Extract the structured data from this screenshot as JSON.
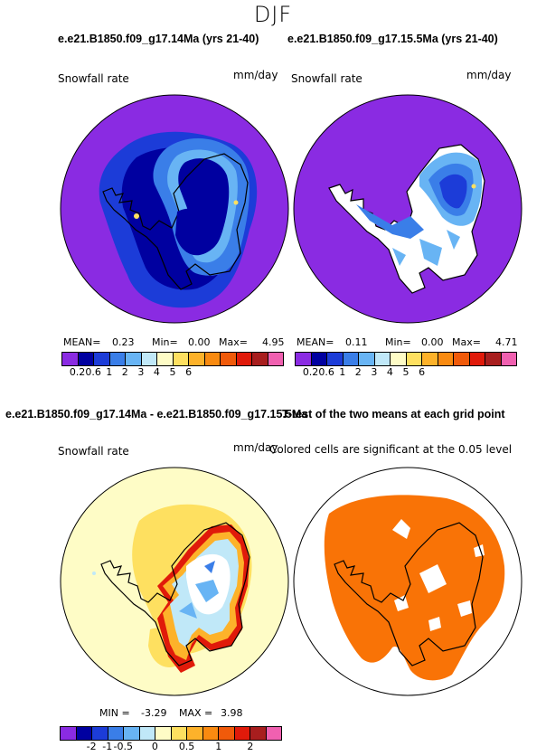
{
  "title": "DJF",
  "panels": {
    "p1": {
      "title": "e.e21.B1850.f09_g17.14Ma (yrs 21-40)",
      "var": "Snowfall rate",
      "units": "mm/day",
      "stats": {
        "mean_label": "MEAN=",
        "mean": "0.23",
        "min_label": "Min=",
        "min": "0.00",
        "max_label": "Max=",
        "max": "4.95"
      }
    },
    "p2": {
      "title": "e.e21.B1850.f09_g17.15.5Ma (yrs 21-40)",
      "var": "Snowfall rate",
      "units": "mm/day",
      "stats": {
        "mean_label": "MEAN=",
        "mean": "0.11",
        "min_label": "Min=",
        "min": "0.00",
        "max_label": "Max=",
        "max": "4.71"
      }
    },
    "p3": {
      "title": "e.e21.B1850.f09_g17.14Ma - e.e21.B1850.f09_g17.15.5Ma",
      "var": "Snowfall rate",
      "units": "mm/day",
      "stats": {
        "min_label": "MIN =",
        "min": "-3.29",
        "max_label": "MAX =",
        "max": "3.98"
      }
    },
    "p4": {
      "title": "T-test of the two means at each grid point",
      "note": "Colored cells are significant at the 0.05 level"
    }
  },
  "colorbar_abs": {
    "colors": [
      "#8a2be2",
      "#0000a0",
      "#1c3cd8",
      "#3a7ee8",
      "#68b4f4",
      "#c0e8f8",
      "#fefcc6",
      "#fee060",
      "#fdb22a",
      "#f98a10",
      "#f05a0a",
      "#e01a0a",
      "#a81e1e",
      "#f060b0"
    ],
    "ticks": [
      "0.2",
      "0.6",
      "1",
      "2",
      "3",
      "4",
      "5",
      "6"
    ],
    "tick_edges": [
      1,
      2,
      3,
      4,
      5,
      6,
      7,
      8
    ]
  },
  "colorbar_diff": {
    "colors": [
      "#8a2be2",
      "#0000a0",
      "#1c3cd8",
      "#3a7ee8",
      "#68b4f4",
      "#c0e8f8",
      "#fefcc6",
      "#fee060",
      "#fdb22a",
      "#f98a10",
      "#f05a0a",
      "#e01a0a",
      "#a81e1e",
      "#f060b0"
    ],
    "ticks": [
      "-2",
      "-1",
      "-0.5",
      "0",
      "0.5",
      "1",
      "2"
    ],
    "tick_edges": [
      2,
      3,
      4,
      6,
      8,
      10,
      12
    ]
  },
  "colors": {
    "background_purple": "#8a2be2",
    "diff_background": "#fefcc6",
    "significance": "#f97306"
  }
}
